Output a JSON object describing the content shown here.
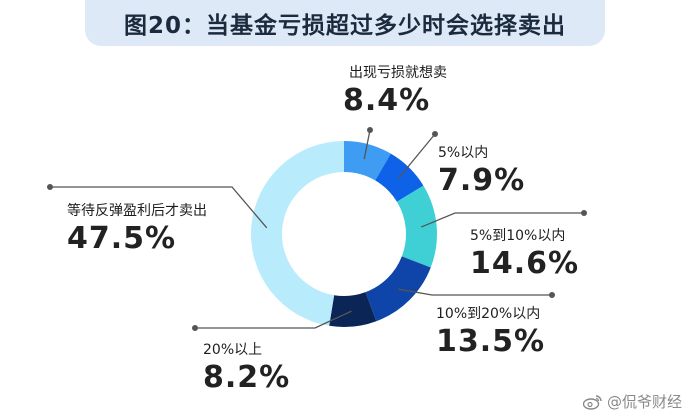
{
  "title": "图20：当基金亏损超过多少时会选择卖出",
  "watermark": "@侃爷财经",
  "chart_data": {
    "type": "pie",
    "donut": true,
    "title": "图20：当基金亏损超过多少时会选择卖出",
    "slices": [
      {
        "label": "出现亏损就想卖",
        "value": 8.4,
        "value_label": "8.4%",
        "color": "#3f9cf3"
      },
      {
        "label": "5%以内",
        "value": 7.9,
        "value_label": "7.9%",
        "color": "#0d62e8"
      },
      {
        "label": "5%到10%以内",
        "value": 14.6,
        "value_label": "14.6%",
        "color": "#3fd0d6"
      },
      {
        "label": "10%到20%以内",
        "value": 13.5,
        "value_label": "13.5%",
        "color": "#0f45a8"
      },
      {
        "label": "20%以上",
        "value": 8.2,
        "value_label": "8.2%",
        "color": "#0b2557"
      },
      {
        "label": "等待反弹盈利后才卖出",
        "value": 47.5,
        "value_label": "47.5%",
        "color": "#b8ebfb"
      }
    ]
  }
}
